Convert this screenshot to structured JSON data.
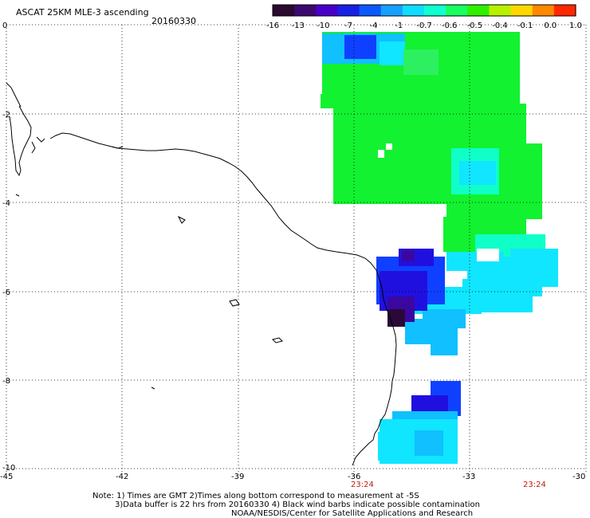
{
  "header": {
    "title": "ASCAT 25KM MLE-3 ascending",
    "date": "20160330"
  },
  "colorbar": {
    "labels": [
      "-16",
      "-13",
      "-10",
      "-7",
      "-4",
      "-1",
      "-0.7",
      "-0.6",
      "-0.5",
      "-0.4",
      "-0.1",
      "0.0",
      "1.0"
    ],
    "colors": [
      "#2a0a30",
      "#3c0a6e",
      "#4a00c8",
      "#1820e6",
      "#0c58ff",
      "#18a0ff",
      "#10dcff",
      "#10ffd0",
      "#18ff60",
      "#30f000",
      "#b8f000",
      "#ffd800",
      "#ff8800",
      "#ff2800"
    ]
  },
  "axes": {
    "lon_ticks": [
      "-45",
      "-42",
      "-39",
      "-36",
      "-33",
      "-30"
    ],
    "lat_ticks": [
      "0",
      "-2",
      "-4",
      "-6",
      "-8",
      "-10"
    ]
  },
  "time_labels": [
    "23:24",
    "23:24"
  ],
  "notes": {
    "line1": "Note: 1) Times are GMT 2)Times along bottom correspond to measurement at -5S",
    "line2": "3)Data buffer is 22 hrs from 20160330 4) Black wind barbs indicate possible contamination",
    "line3": "NOAA/NESDIS/Center for Satellite Applications and Research"
  },
  "palette": {
    "green": "#12f230",
    "green_light": "#2cf060",
    "aqua": "#10ffc8",
    "cyan": "#10e6ff",
    "sky": "#10c0ff",
    "blue": "#1040ff",
    "deep_blue": "#2010e0",
    "violet": "#3a08a0",
    "dark": "#2a0838"
  }
}
